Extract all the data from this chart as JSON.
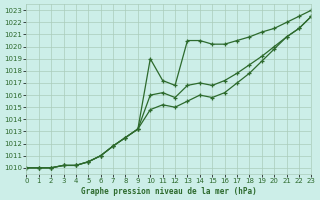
{
  "xlabel": "Graphe pression niveau de la mer (hPa)",
  "xlim": [
    0,
    23
  ],
  "ylim": [
    1009.5,
    1023.5
  ],
  "yticks": [
    1010,
    1011,
    1012,
    1013,
    1014,
    1015,
    1016,
    1017,
    1018,
    1019,
    1020,
    1021,
    1022,
    1023
  ],
  "xticks": [
    0,
    1,
    2,
    3,
    4,
    5,
    6,
    7,
    8,
    9,
    10,
    11,
    12,
    13,
    14,
    15,
    16,
    17,
    18,
    19,
    20,
    21,
    22,
    23
  ],
  "background_color": "#cceee8",
  "grid_color": "#aaccbb",
  "line_color": "#2d6a2d",
  "line1_y": [
    1010.0,
    1010.0,
    1010.0,
    1010.2,
    1010.2,
    1010.5,
    1011.0,
    1011.8,
    1012.5,
    1013.2,
    1019.0,
    1017.2,
    1016.8,
    1020.5,
    1020.5,
    1020.2,
    1020.2,
    1020.5,
    1020.8,
    1021.2,
    1021.5,
    1022.0,
    1022.5,
    1023.0
  ],
  "line2_y": [
    1010.0,
    1010.0,
    1010.0,
    1010.2,
    1010.2,
    1010.5,
    1011.0,
    1011.8,
    1012.5,
    1013.2,
    1016.0,
    1016.2,
    1015.8,
    1016.8,
    1017.0,
    1016.8,
    1017.2,
    1017.8,
    1018.5,
    1019.2,
    1020.0,
    1020.8,
    1021.5,
    1022.5
  ],
  "line3_y": [
    1010.0,
    1010.0,
    1010.0,
    1010.2,
    1010.2,
    1010.5,
    1011.0,
    1011.8,
    1012.5,
    1013.2,
    1014.8,
    1015.2,
    1015.0,
    1015.5,
    1016.0,
    1015.8,
    1016.2,
    1017.0,
    1017.8,
    1018.8,
    1019.8,
    1020.8,
    1021.5,
    1022.5
  ]
}
